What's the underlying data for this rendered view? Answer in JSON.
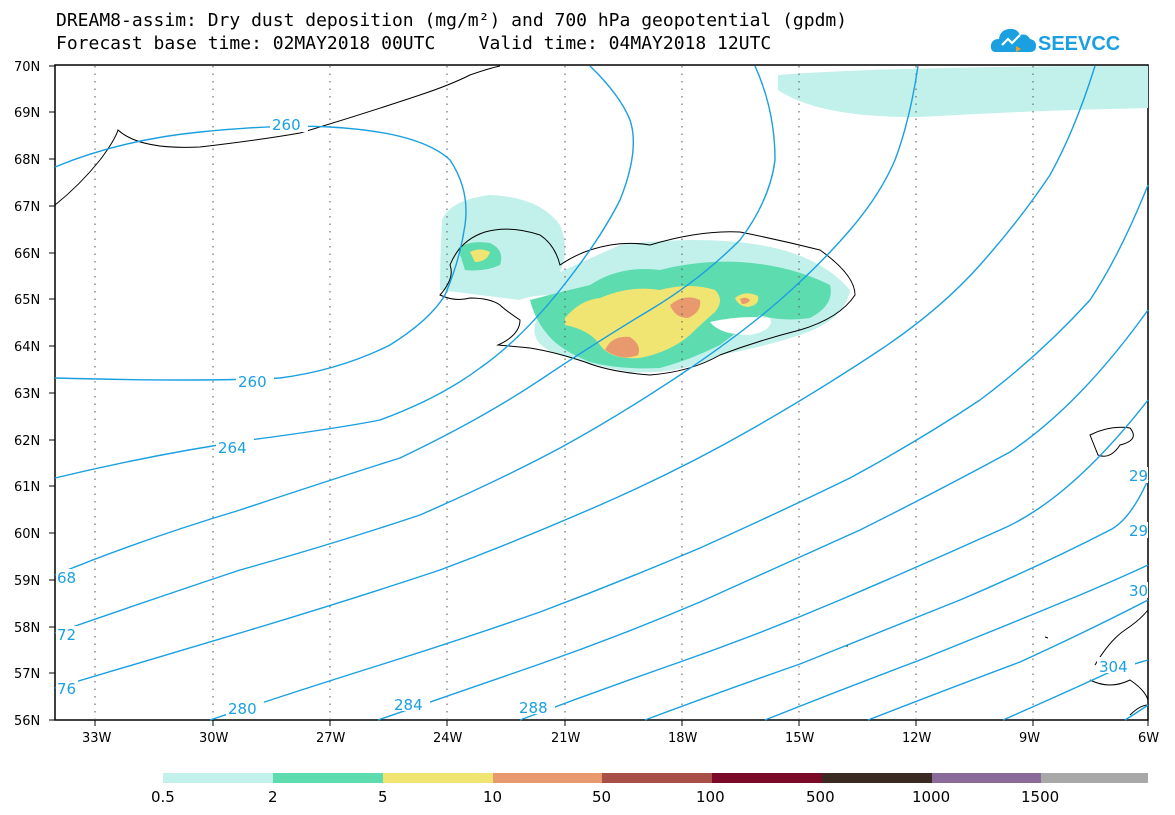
{
  "header": {
    "title_line1": "DREAM8-assim: Dry dust deposition (mg/m²) and 700 hPa geopotential (gpdm)",
    "title_line2": "Forecast base time: 02MAY2018 00UTC    Valid time: 04MAY2018 12UTC",
    "logo_text": "SEEVCCC"
  },
  "map": {
    "lat_labels": [
      "70N",
      "69N",
      "68N",
      "67N",
      "66N",
      "65N",
      "64N",
      "63N",
      "62N",
      "61N",
      "60N",
      "59N",
      "58N",
      "57N",
      "56N"
    ],
    "lon_labels": [
      "33W",
      "30W",
      "27W",
      "24W",
      "21W",
      "18W",
      "15W",
      "12W",
      "9W",
      "6W"
    ],
    "contour_labels": [
      "260",
      "260",
      "264",
      "68",
      "72",
      "76",
      "280",
      "284",
      "288",
      "29",
      "29",
      "30",
      "304"
    ],
    "contour_color": "#1a9fe0",
    "coast_color": "#000000"
  },
  "legend": {
    "colors": [
      "#c2f0ea",
      "#5ddcb0",
      "#f0e472",
      "#e89a6e",
      "#a85048",
      "#7a0a28",
      "#3a2a22",
      "#8a6a98",
      "#a8a8a8"
    ],
    "labels": [
      "0.5",
      "2",
      "5",
      "10",
      "50",
      "100",
      "500",
      "1000",
      "1500"
    ]
  }
}
